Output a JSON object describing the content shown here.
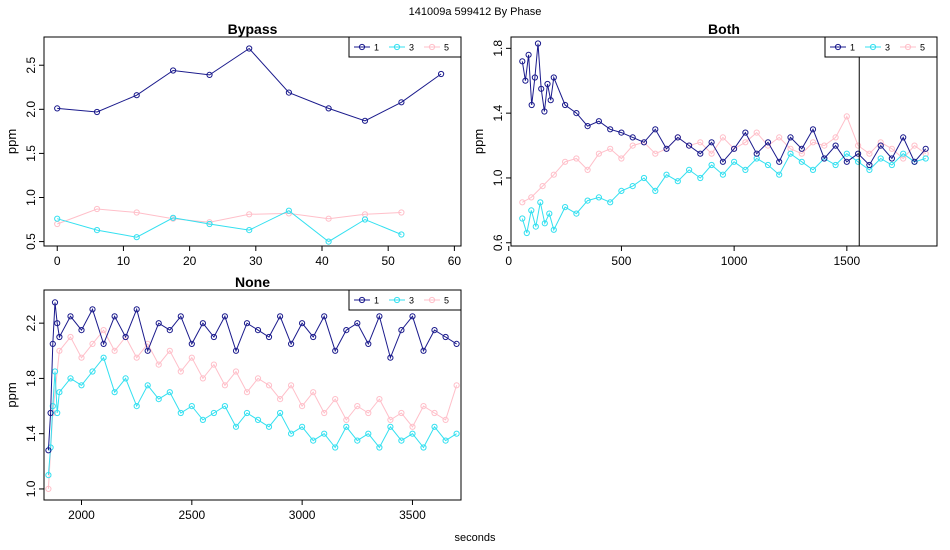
{
  "suptitle": "141009a   599412   By Phase",
  "xlabel_global": "seconds",
  "colors": {
    "1": "#1a1a8c",
    "3": "#33e0f0",
    "5": "#ffbfc9",
    "axis": "#000000",
    "vline": "#000000"
  },
  "chart_data": [
    {
      "type": "line",
      "title": "Bypass",
      "ylabel": "ppm",
      "xlim": [
        -2,
        61
      ],
      "ylim": [
        0.45,
        2.82
      ],
      "xticks": [
        0,
        10,
        20,
        30,
        40,
        50,
        60
      ],
      "yticks": [
        0.5,
        1.0,
        1.5,
        2.0,
        2.5
      ],
      "ytick_labels": [
        "0.5",
        "1.0",
        "1.5",
        "2.0",
        "2.5"
      ],
      "legend": {
        "position": "top-right",
        "entries": [
          "1",
          "3",
          "5"
        ]
      },
      "series": [
        {
          "name": "1",
          "x": [
            0,
            6,
            12,
            17.5,
            23,
            29,
            35,
            41,
            46.5,
            52,
            58
          ],
          "y": [
            2.01,
            1.97,
            2.16,
            2.44,
            2.39,
            2.69,
            2.19,
            2.01,
            1.87,
            2.08,
            2.4
          ]
        },
        {
          "name": "3",
          "x": [
            0,
            6,
            12,
            17.5,
            23,
            29,
            35,
            41,
            46.5,
            52
          ],
          "y": [
            0.76,
            0.63,
            0.55,
            0.77,
            0.7,
            0.63,
            0.85,
            0.5,
            0.75,
            0.58
          ]
        },
        {
          "name": "5",
          "x": [
            0,
            6,
            12,
            17.5,
            23,
            29,
            35,
            41,
            46.5,
            52
          ],
          "y": [
            0.7,
            0.87,
            0.83,
            0.76,
            0.72,
            0.81,
            0.82,
            0.76,
            0.81,
            0.83
          ]
        }
      ]
    },
    {
      "type": "line",
      "title": "Both",
      "ylabel": "ppm",
      "xlim": [
        10,
        1900
      ],
      "ylim": [
        0.58,
        1.87
      ],
      "xticks": [
        0,
        500,
        1000,
        1500
      ],
      "yticks": [
        0.6,
        1.0,
        1.4,
        1.8
      ],
      "ytick_labels": [
        "0.6",
        "1.0",
        "1.4",
        "1.8"
      ],
      "vline_x": 1555,
      "legend": {
        "position": "top-right",
        "entries": [
          "1",
          "3",
          "5"
        ]
      },
      "series": [
        {
          "name": "1",
          "x": [
            60,
            74,
            88,
            102,
            116,
            130,
            144,
            158,
            172,
            186,
            200,
            250,
            300,
            350,
            400,
            450,
            500,
            550,
            600,
            650,
            700,
            750,
            800,
            850,
            900,
            950,
            1000,
            1050,
            1100,
            1150,
            1200,
            1250,
            1300,
            1350,
            1400,
            1450,
            1500,
            1550,
            1600,
            1650,
            1700,
            1750,
            1800,
            1850
          ],
          "y": [
            1.72,
            1.6,
            1.76,
            1.45,
            1.62,
            1.83,
            1.55,
            1.41,
            1.58,
            1.48,
            1.62,
            1.45,
            1.4,
            1.32,
            1.35,
            1.3,
            1.28,
            1.25,
            1.22,
            1.3,
            1.18,
            1.25,
            1.2,
            1.15,
            1.22,
            1.1,
            1.18,
            1.28,
            1.15,
            1.22,
            1.1,
            1.25,
            1.18,
            1.3,
            1.12,
            1.2,
            1.1,
            1.15,
            1.08,
            1.2,
            1.12,
            1.25,
            1.1,
            1.18
          ]
        },
        {
          "name": "3",
          "x": [
            60,
            80,
            100,
            120,
            140,
            160,
            180,
            200,
            250,
            300,
            350,
            400,
            450,
            500,
            550,
            600,
            650,
            700,
            750,
            800,
            850,
            900,
            950,
            1000,
            1050,
            1100,
            1150,
            1200,
            1250,
            1300,
            1350,
            1400,
            1450,
            1500,
            1550,
            1600,
            1650,
            1700,
            1750,
            1800,
            1850
          ],
          "y": [
            0.75,
            0.66,
            0.8,
            0.7,
            0.85,
            0.72,
            0.78,
            0.68,
            0.82,
            0.78,
            0.86,
            0.88,
            0.85,
            0.92,
            0.95,
            1.0,
            0.92,
            1.02,
            0.98,
            1.05,
            1.0,
            1.08,
            1.02,
            1.1,
            1.05,
            1.12,
            1.08,
            1.02,
            1.15,
            1.1,
            1.05,
            1.12,
            1.08,
            1.15,
            1.1,
            1.05,
            1.12,
            1.08,
            1.15,
            1.1,
            1.12
          ]
        },
        {
          "name": "5",
          "x": [
            60,
            100,
            150,
            200,
            250,
            300,
            350,
            400,
            450,
            500,
            550,
            600,
            650,
            700,
            750,
            800,
            850,
            900,
            950,
            1000,
            1050,
            1100,
            1150,
            1200,
            1250,
            1300,
            1350,
            1400,
            1450,
            1500,
            1550,
            1600,
            1650,
            1700,
            1750,
            1800,
            1850
          ],
          "y": [
            0.85,
            0.88,
            0.95,
            1.02,
            1.1,
            1.12,
            1.05,
            1.15,
            1.18,
            1.12,
            1.2,
            1.22,
            1.15,
            1.18,
            1.25,
            1.2,
            1.22,
            1.15,
            1.25,
            1.18,
            1.22,
            1.28,
            1.2,
            1.25,
            1.18,
            1.15,
            1.22,
            1.2,
            1.25,
            1.38,
            1.2,
            1.15,
            1.22,
            1.18,
            1.12,
            1.2,
            1.15
          ]
        }
      ]
    },
    {
      "type": "line",
      "title": "None",
      "ylabel": "ppm",
      "xlim": [
        1830,
        3720
      ],
      "ylim": [
        0.92,
        2.44
      ],
      "xticks": [
        2000,
        2500,
        3000,
        3500
      ],
      "yticks": [
        1.0,
        1.4,
        1.8,
        2.2
      ],
      "ytick_labels": [
        "1.0",
        "1.4",
        "1.8",
        "2.2"
      ],
      "legend": {
        "position": "top-right",
        "entries": [
          "1",
          "3",
          "5"
        ]
      },
      "series": [
        {
          "name": "1",
          "x": [
            1850,
            1860,
            1870,
            1880,
            1890,
            1900,
            1950,
            2000,
            2050,
            2100,
            2150,
            2200,
            2250,
            2300,
            2350,
            2400,
            2450,
            2500,
            2550,
            2600,
            2650,
            2700,
            2750,
            2800,
            2850,
            2900,
            2950,
            3000,
            3050,
            3100,
            3150,
            3200,
            3250,
            3300,
            3350,
            3400,
            3450,
            3500,
            3550,
            3600,
            3650,
            3700
          ],
          "y": [
            1.28,
            1.55,
            2.05,
            2.35,
            2.2,
            2.1,
            2.25,
            2.15,
            2.3,
            2.05,
            2.25,
            2.1,
            2.3,
            2.0,
            2.2,
            2.15,
            2.25,
            2.05,
            2.2,
            2.1,
            2.25,
            2.0,
            2.2,
            2.15,
            2.1,
            2.25,
            2.05,
            2.2,
            2.1,
            2.25,
            2.0,
            2.15,
            2.2,
            2.05,
            2.25,
            1.95,
            2.15,
            2.25,
            2.0,
            2.15,
            2.1,
            2.05
          ]
        },
        {
          "name": "3",
          "x": [
            1850,
            1860,
            1870,
            1880,
            1890,
            1900,
            1950,
            2000,
            2050,
            2100,
            2150,
            2200,
            2250,
            2300,
            2350,
            2400,
            2450,
            2500,
            2550,
            2600,
            2650,
            2700,
            2750,
            2800,
            2850,
            2900,
            2950,
            3000,
            3050,
            3100,
            3150,
            3200,
            3250,
            3300,
            3350,
            3400,
            3450,
            3500,
            3550,
            3600,
            3650,
            3700
          ],
          "y": [
            1.1,
            1.3,
            1.6,
            1.85,
            1.55,
            1.7,
            1.8,
            1.75,
            1.85,
            1.95,
            1.7,
            1.8,
            1.6,
            1.75,
            1.65,
            1.7,
            1.55,
            1.6,
            1.5,
            1.55,
            1.6,
            1.45,
            1.55,
            1.5,
            1.45,
            1.55,
            1.4,
            1.45,
            1.35,
            1.4,
            1.3,
            1.45,
            1.35,
            1.4,
            1.3,
            1.45,
            1.35,
            1.4,
            1.3,
            1.45,
            1.35,
            1.4
          ]
        },
        {
          "name": "5",
          "x": [
            1850,
            1870,
            1900,
            1950,
            2000,
            2050,
            2100,
            2150,
            2200,
            2250,
            2300,
            2350,
            2400,
            2450,
            2500,
            2550,
            2600,
            2650,
            2700,
            2750,
            2800,
            2850,
            2900,
            2950,
            3000,
            3050,
            3100,
            3150,
            3200,
            3250,
            3300,
            3350,
            3400,
            3450,
            3500,
            3550,
            3600,
            3650,
            3700
          ],
          "y": [
            1.0,
            1.55,
            2.0,
            2.1,
            1.95,
            2.05,
            2.15,
            2.0,
            2.1,
            1.95,
            2.05,
            1.9,
            2.0,
            1.85,
            1.95,
            1.8,
            1.9,
            1.75,
            1.85,
            1.7,
            1.8,
            1.75,
            1.65,
            1.75,
            1.6,
            1.7,
            1.55,
            1.65,
            1.5,
            1.6,
            1.55,
            1.65,
            1.5,
            1.55,
            1.45,
            1.6,
            1.55,
            1.5,
            1.75
          ]
        }
      ]
    }
  ]
}
